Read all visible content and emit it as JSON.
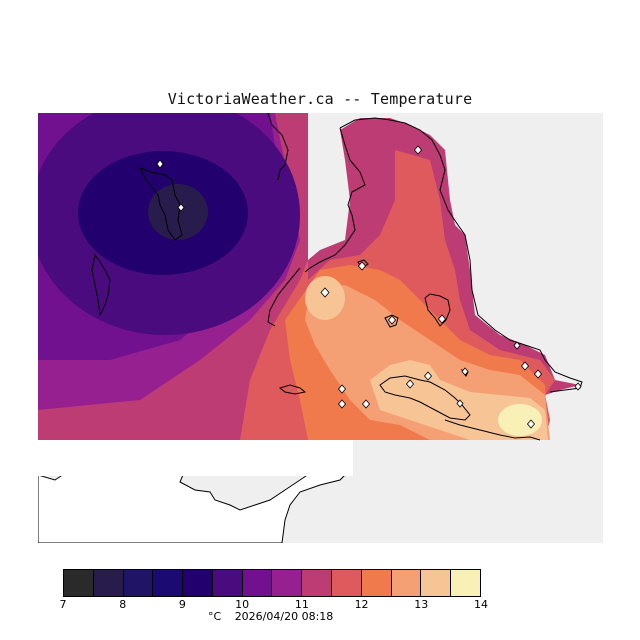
{
  "header": {
    "title": "VictoriaWeather.ca -- Temperature"
  },
  "legend": {
    "unit": "°C",
    "timestamp": "2026/04/20 08:18",
    "ticks": [
      "7",
      "8",
      "9",
      "10",
      "11",
      "12",
      "13",
      "14"
    ],
    "colors": [
      "#2a2a2a",
      "#281c4c",
      "#1f1466",
      "#1a0a72",
      "#22006d",
      "#4a0b7e",
      "#71118f",
      "#962090",
      "#bd3c74",
      "#de5a5d",
      "#f07a4b",
      "#f4a074",
      "#f7c496",
      "#f9f0b8"
    ]
  },
  "map": {
    "land_no_data_color": "#ffffff",
    "water_color": "#efefef",
    "coastline_color": "#000000",
    "station_marker": "diamond"
  }
}
